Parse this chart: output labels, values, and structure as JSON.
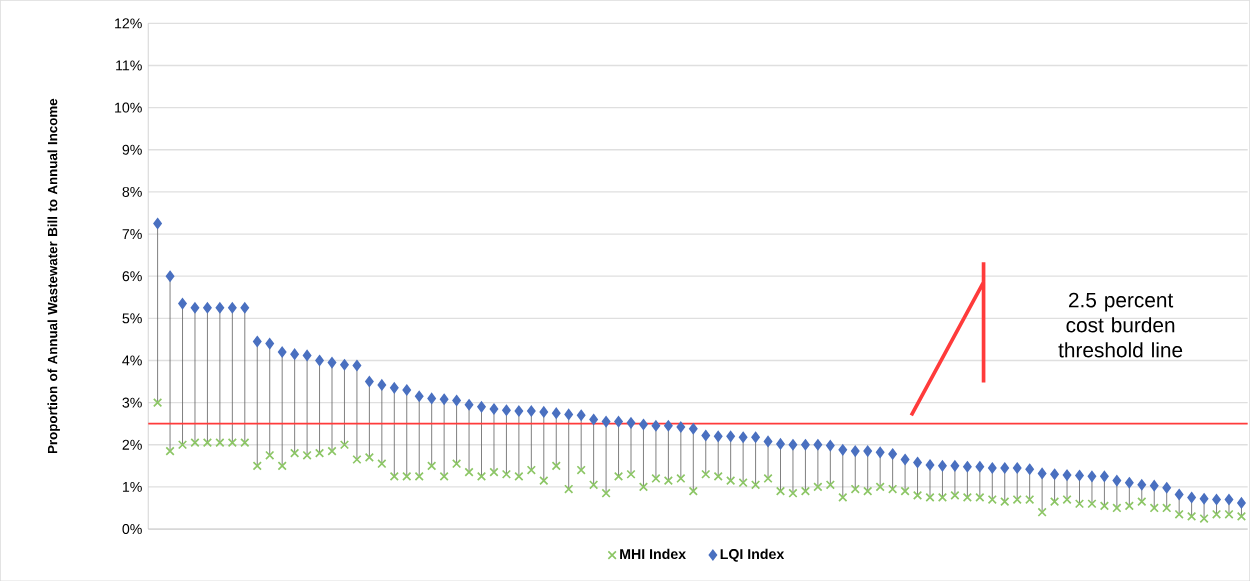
{
  "chart_data": {
    "type": "scatter",
    "ylabel": "Proportion of Annual Wastewater Bill to Annual Income",
    "categories": [
      null,
      null,
      null,
      null,
      null,
      null,
      null,
      null,
      null,
      null,
      null,
      null,
      null,
      null,
      null,
      null,
      null,
      null,
      null,
      null,
      null,
      null,
      null,
      null,
      null,
      null,
      null,
      null,
      null,
      null,
      null,
      null,
      null,
      null,
      null,
      null,
      null,
      null,
      null,
      null,
      null,
      null,
      null,
      null,
      null,
      null,
      null,
      null,
      null,
      null,
      null,
      null,
      null,
      null,
      null,
      null,
      null,
      null,
      null,
      null,
      null,
      null,
      null,
      null,
      null,
      null,
      null,
      null,
      null,
      null,
      null,
      null,
      null,
      null,
      null,
      null,
      null,
      null,
      null,
      null,
      null,
      null,
      null,
      null,
      null,
      null,
      null,
      null
    ],
    "series": [
      {
        "name": "MHI Index",
        "color": "#8cc665",
        "marker": "cross",
        "values": [
          3.0,
          1.85,
          2.0,
          2.05,
          2.05,
          2.05,
          2.05,
          2.05,
          1.5,
          1.75,
          1.5,
          1.8,
          1.75,
          1.8,
          1.85,
          2.0,
          1.65,
          1.7,
          1.55,
          1.25,
          1.25,
          1.25,
          1.5,
          1.25,
          1.55,
          1.35,
          1.25,
          1.35,
          1.3,
          1.25,
          1.4,
          1.15,
          1.5,
          0.95,
          1.4,
          1.05,
          0.85,
          1.25,
          1.3,
          1.0,
          1.2,
          1.15,
          1.2,
          0.9,
          1.3,
          1.25,
          1.15,
          1.1,
          1.05,
          1.2,
          0.9,
          0.85,
          0.9,
          1.0,
          1.05,
          0.75,
          0.95,
          0.9,
          1.0,
          0.95,
          0.9,
          0.8,
          0.75,
          0.75,
          0.8,
          0.75,
          0.75,
          0.7,
          0.65,
          0.7,
          0.7,
          0.4,
          0.65,
          0.7,
          0.6,
          0.6,
          0.55,
          0.5,
          0.55,
          0.65,
          0.5,
          0.5,
          0.35,
          0.3,
          0.25,
          0.35,
          0.35,
          0.3
        ]
      },
      {
        "name": "LQI Index",
        "color": "#4a70c0",
        "marker": "diamond",
        "values": [
          7.25,
          6.0,
          5.35,
          5.25,
          5.25,
          5.25,
          5.25,
          5.25,
          4.45,
          4.4,
          4.2,
          4.15,
          4.12,
          4.0,
          3.95,
          3.9,
          3.88,
          3.5,
          3.42,
          3.35,
          3.3,
          3.15,
          3.1,
          3.08,
          3.05,
          2.95,
          2.9,
          2.85,
          2.82,
          2.8,
          2.8,
          2.78,
          2.75,
          2.72,
          2.7,
          2.6,
          2.55,
          2.55,
          2.52,
          2.48,
          2.45,
          2.45,
          2.42,
          2.38,
          2.22,
          2.2,
          2.2,
          2.18,
          2.18,
          2.08,
          2.02,
          2.0,
          2.0,
          2.0,
          1.98,
          1.88,
          1.85,
          1.85,
          1.82,
          1.78,
          1.65,
          1.58,
          1.52,
          1.5,
          1.5,
          1.48,
          1.48,
          1.45,
          1.45,
          1.45,
          1.42,
          1.32,
          1.3,
          1.28,
          1.27,
          1.25,
          1.25,
          1.15,
          1.1,
          1.05,
          1.03,
          0.98,
          0.82,
          0.75,
          0.72,
          0.7,
          0.7,
          0.62
        ]
      }
    ],
    "ylim": [
      0,
      12
    ],
    "yticks": [
      {
        "value": 0,
        "label": "0%"
      },
      {
        "value": 1,
        "label": "1%"
      },
      {
        "value": 2,
        "label": "2%"
      },
      {
        "value": 3,
        "label": "3%"
      },
      {
        "value": 4,
        "label": "4%"
      },
      {
        "value": 5,
        "label": "5%"
      },
      {
        "value": 6,
        "label": "6%"
      },
      {
        "value": 7,
        "label": "7%"
      },
      {
        "value": 8,
        "label": "8%"
      },
      {
        "value": 9,
        "label": "9%"
      },
      {
        "value": 10,
        "label": "10%"
      },
      {
        "value": 11,
        "label": "11%"
      },
      {
        "value": 12,
        "label": "12%"
      }
    ],
    "ref_lines": [
      {
        "axis": "y",
        "value": 2.5,
        "color": "#ff3b3b"
      }
    ],
    "annotations": [
      "2.5 percent cost burden threshold line"
    ],
    "grid": "y",
    "legend": "bottom",
    "tick_labels": "y"
  }
}
